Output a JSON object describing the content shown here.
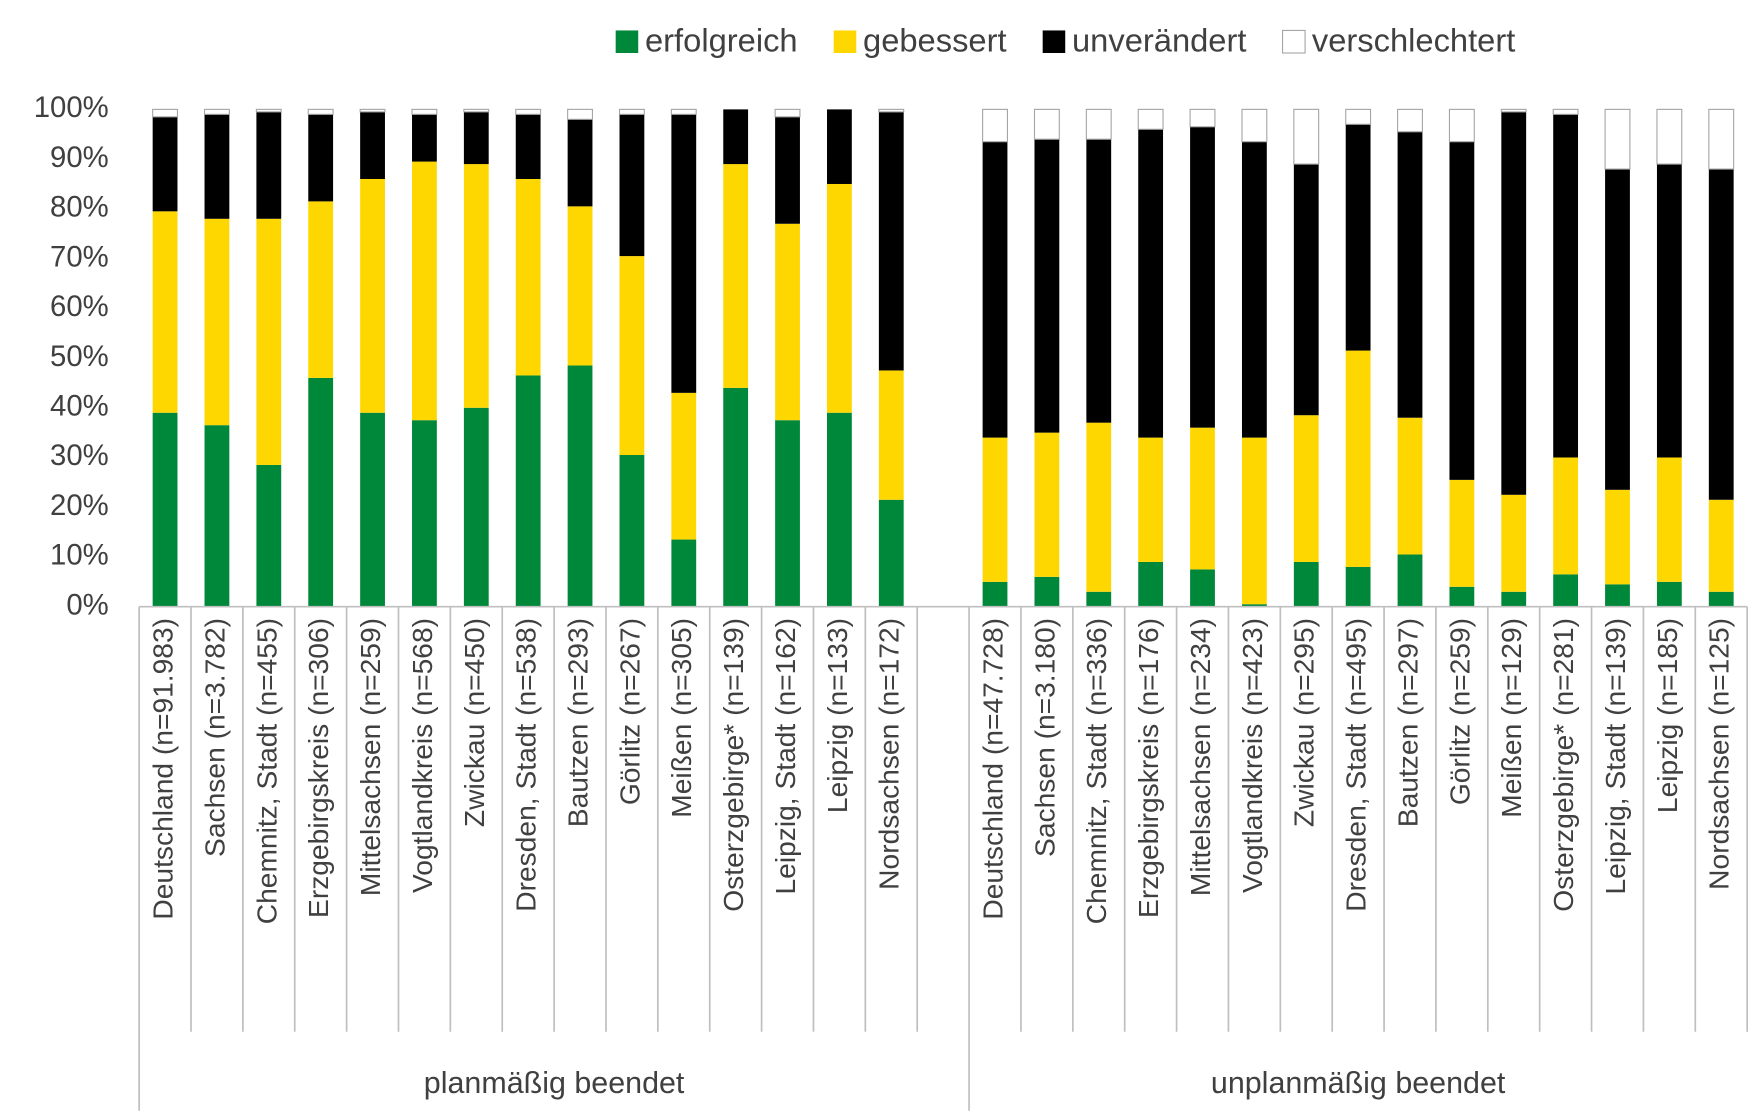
{
  "chart_data": {
    "type": "stacked_bar",
    "categories": [
      "Deutschland (n=91.983)",
      "Sachsen (n=3.782)",
      "Chemnitz, Stadt (n=455)",
      "Erzgebirgskreis (n=306)",
      "Mittelsachsen (n=259)",
      "Vogtlandkreis (n=568)",
      "Zwickau (n=450)",
      "Dresden, Stadt (n=538)",
      "Bautzen (n=293)",
      "Görlitz (n=267)",
      "Meißen (n=305)",
      "Osterzgebirge* (n=139)",
      "Leipzig, Stadt (n=162)",
      "Leipzig (n=133)",
      "Nordsachsen (n=172)",
      null,
      "Deutschland (n=47.728)",
      "Sachsen (n=3.180)",
      "Chemnitz, Stadt (n=336)",
      "Erzgebirgskreis (n=176)",
      "Mittelsachsen (n=234)",
      "Vogtlandkreis (n=423)",
      "Zwickau (n=295)",
      "Dresden, Stadt (n=495)",
      "Bautzen (n=297)",
      "Görlitz (n=259)",
      "Meißen (n=129)",
      "Osterzgebirge* (n=281)",
      "Leipzig, Stadt (n=139)",
      "Leipzig (n=185)",
      "Nordsachsen (n=125)"
    ],
    "groups": [
      {
        "name": "planmäßig beendet",
        "size": 16
      },
      {
        "name": "unplanmäßig beendet",
        "size": 15
      }
    ],
    "series": [
      {
        "name": "erfolgreich",
        "color": "#00883a",
        "values": [
          39,
          36.5,
          28.5,
          46,
          39,
          37.5,
          40,
          46.5,
          48.5,
          30.5,
          13.5,
          44,
          37.5,
          39,
          21.5,
          null,
          5,
          6,
          3,
          9,
          7.5,
          0.5,
          9,
          8,
          10.5,
          4,
          3,
          6.5,
          4.5,
          5,
          3
        ]
      },
      {
        "name": "gebessert",
        "color": "#ffd700",
        "values": [
          40.5,
          41.5,
          49.5,
          35.5,
          47,
          52,
          49,
          39.5,
          32,
          40,
          29.5,
          45,
          39.5,
          46,
          26,
          null,
          29,
          29,
          34,
          25,
          28.5,
          33.5,
          29.5,
          43.5,
          27.5,
          21.5,
          19.5,
          23.5,
          19,
          25,
          18.5
        ]
      },
      {
        "name": "unverändert",
        "color": "#000000",
        "values": [
          19,
          21,
          21.5,
          17.5,
          13.5,
          9.5,
          10.5,
          13,
          17.5,
          28.5,
          56,
          11,
          21.5,
          15,
          52,
          null,
          59.5,
          59,
          57,
          62,
          60.5,
          59.5,
          50.5,
          45.5,
          57.5,
          68,
          77,
          69,
          64.5,
          59,
          66.5
        ]
      },
      {
        "name": "verschlechtert",
        "color": "#ffffff",
        "values": [
          1.5,
          1,
          0.5,
          1,
          0.5,
          1,
          0.5,
          1,
          2,
          1,
          1,
          0,
          1.5,
          0,
          0.5,
          null,
          6.5,
          6,
          6,
          4,
          3.5,
          6.5,
          11,
          3,
          4.5,
          6.5,
          0.5,
          1,
          12,
          11,
          12
        ]
      }
    ],
    "ylim": [
      0,
      100
    ],
    "yticks": [
      {
        "value": 0,
        "label": "0%"
      },
      {
        "value": 10,
        "label": "10%"
      },
      {
        "value": 20,
        "label": "20%"
      },
      {
        "value": 30,
        "label": "30%"
      },
      {
        "value": 40,
        "label": "40%"
      },
      {
        "value": 50,
        "label": "50%"
      },
      {
        "value": 60,
        "label": "60%"
      },
      {
        "value": 70,
        "label": "70%"
      },
      {
        "value": 80,
        "label": "80%"
      },
      {
        "value": 90,
        "label": "90%"
      },
      {
        "value": 100,
        "label": "100%"
      }
    ],
    "legend": "top"
  }
}
